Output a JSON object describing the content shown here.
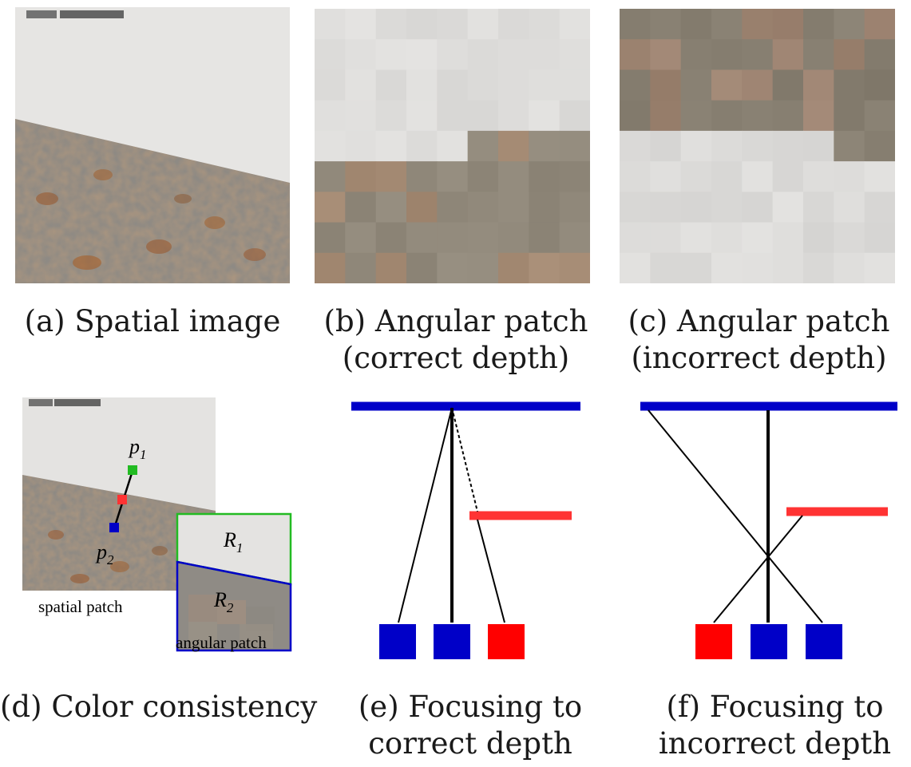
{
  "panels": {
    "a": {
      "caption_lines": [
        "(a) Spatial image"
      ]
    },
    "b": {
      "caption_lines": [
        "(b) Angular patch",
        "(correct depth)"
      ]
    },
    "c": {
      "caption_lines": [
        "(c) Angular patch",
        "(incorrect depth)"
      ]
    },
    "d": {
      "caption_lines": [
        "(d) Color consistency"
      ],
      "labels": {
        "p1": "p",
        "p1_sub": "1",
        "p2": "p",
        "p2_sub": "2",
        "r1": "R",
        "r1_sub": "1",
        "r2": "R",
        "r2_sub": "2",
        "spatial_patch": "spatial patch",
        "angular_patch": "angular patch"
      }
    },
    "e": {
      "caption_lines": [
        "(e) Focusing to",
        "correct depth"
      ]
    },
    "f": {
      "caption_lines": [
        "(f) Focusing to",
        "incorrect depth"
      ]
    }
  },
  "colors": {
    "blue": "#0000c8",
    "red": "#ff3333",
    "red_square": "#ff0000",
    "green": "#22bb22",
    "line": "#000000"
  }
}
